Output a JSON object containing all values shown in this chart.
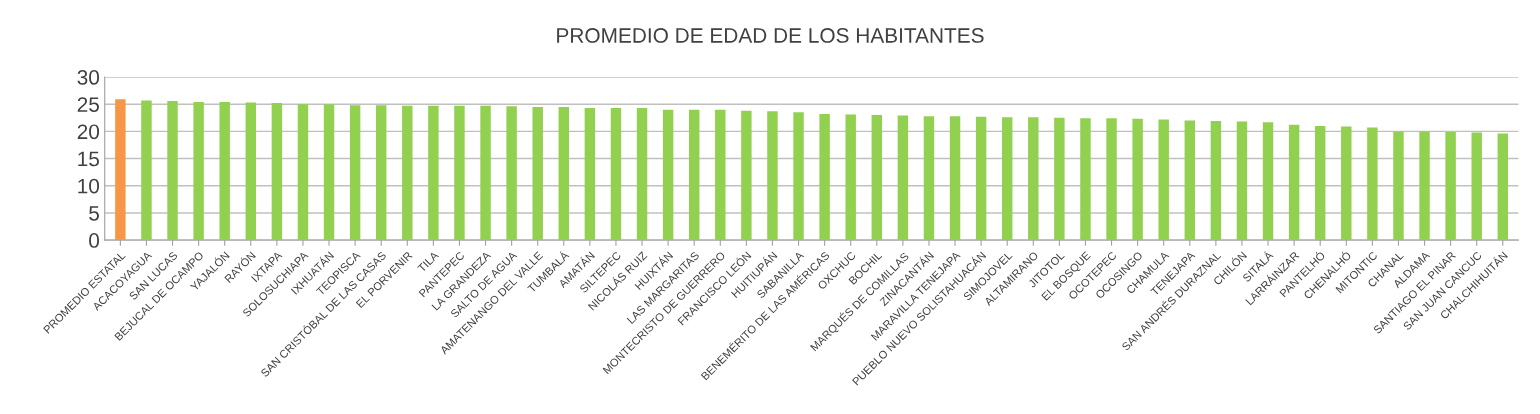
{
  "chart_data": {
    "type": "bar",
    "title": "PROMEDIO DE EDAD DE LOS HABITANTES",
    "categories": [
      "PROMEDIO ESTATAL",
      "ACACOYAGUA",
      "SAN LUCAS",
      "BEJUCAL DE OCAMPO",
      "YAJALÓN",
      "RAYÓN",
      "IXTAPA",
      "SOLOSUCHIAPA",
      "IXHUATÁN",
      "TEOPISCA",
      "SAN CRISTÓBAL DE LAS CASAS",
      "EL PORVENIR",
      "TILA",
      "PANTEPEC",
      "LA GRANDEZA",
      "SALTO DE AGUA",
      "AMATENANGO DEL VALLE",
      "TUMBALÁ",
      "AMATÁN",
      "SILTEPEC",
      "NICOLÁS RUIZ",
      "HUIXTÁN",
      "LAS MARGARITAS",
      "MONTECRISTO DE GUERRERO",
      "FRANCISCO LEÓN",
      "HUITIUPÁN",
      "SABANILLA",
      "BENEMÉRITO DE LAS AMÉRICAS",
      "OXCHUC",
      "BOCHIL",
      "MARQUÉS DE COMILLAS",
      "ZINACANTÁN",
      "MARAVILLA TENEJAPA",
      "PUEBLO NUEVO SOLISTAHUACÁN",
      "SIMOJOVEL",
      "ALTAMIRANO",
      "JITOTOL",
      "EL BOSQUE",
      "OCOTEPEC",
      "OCOSINGO",
      "CHAMULA",
      "TENEJAPA",
      "SAN ANDRÉS DURAZNAL",
      "CHILÓN",
      "SITALÁ",
      "LARRÁINZAR",
      "PANTELHÓ",
      "CHENALHÓ",
      "MITONTIC",
      "CHANAL",
      "ALDAMA",
      "SANTIAGO EL PINAR",
      "SAN JUAN CANCUC",
      "CHALCHIHUITÁN"
    ],
    "values": [
      25.9,
      25.7,
      25.6,
      25.4,
      25.4,
      25.3,
      25.2,
      25.0,
      25.0,
      24.8,
      24.8,
      24.7,
      24.7,
      24.7,
      24.7,
      24.6,
      24.5,
      24.5,
      24.3,
      24.3,
      24.3,
      24.0,
      24.0,
      24.0,
      23.8,
      23.7,
      23.5,
      23.2,
      23.1,
      23.0,
      22.9,
      22.8,
      22.8,
      22.7,
      22.6,
      22.6,
      22.5,
      22.4,
      22.4,
      22.3,
      22.2,
      22.0,
      21.9,
      21.8,
      21.7,
      21.2,
      21.0,
      20.9,
      20.7,
      20.0,
      20.0,
      19.9,
      19.8,
      19.6
    ],
    "colors": [
      "#f79646",
      "#92d050",
      "#92d050",
      "#92d050",
      "#92d050",
      "#92d050",
      "#92d050",
      "#92d050",
      "#92d050",
      "#92d050",
      "#92d050",
      "#92d050",
      "#92d050",
      "#92d050",
      "#92d050",
      "#92d050",
      "#92d050",
      "#92d050",
      "#92d050",
      "#92d050",
      "#92d050",
      "#92d050",
      "#92d050",
      "#92d050",
      "#92d050",
      "#92d050",
      "#92d050",
      "#92d050",
      "#92d050",
      "#92d050",
      "#92d050",
      "#92d050",
      "#92d050",
      "#92d050",
      "#92d050",
      "#92d050",
      "#92d050",
      "#92d050",
      "#92d050",
      "#92d050",
      "#92d050",
      "#92d050",
      "#92d050",
      "#92d050",
      "#92d050",
      "#92d050",
      "#92d050",
      "#92d050",
      "#92d050",
      "#92d050",
      "#92d050",
      "#92d050",
      "#92d050",
      "#92d050"
    ],
    "ylim": [
      0,
      30
    ],
    "yticks": [
      0,
      5,
      10,
      15,
      20,
      25,
      30
    ],
    "grid": "y"
  }
}
